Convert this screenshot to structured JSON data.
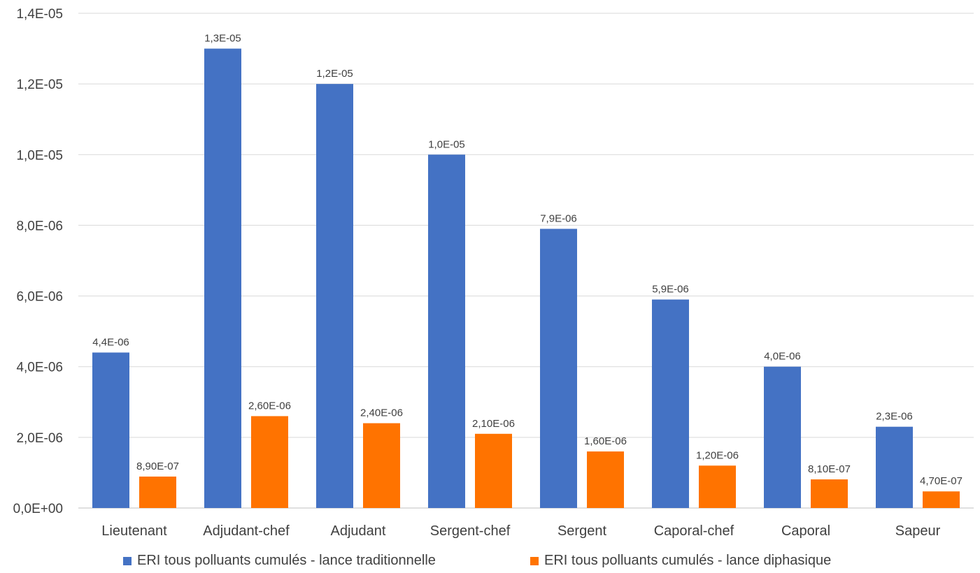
{
  "chart_data": {
    "type": "bar",
    "title": "",
    "xlabel": "",
    "ylabel": "",
    "ylim": [
      0,
      1.4e-05
    ],
    "y_ticks": [
      0,
      2e-06,
      4e-06,
      6e-06,
      8e-06,
      1e-05,
      1.2e-05,
      1.4e-05
    ],
    "y_tick_labels": [
      "0,0E+00",
      "2,0E-06",
      "4,0E-06",
      "6,0E-06",
      "8,0E-06",
      "1,0E-05",
      "1,2E-05",
      "1,4E-05"
    ],
    "grid": true,
    "legend_position": "bottom",
    "categories": [
      "Lieutenant",
      "Adjudant-chef",
      "Adjudant",
      "Sergent-chef",
      "Sergent",
      "Caporal-chef",
      "Caporal",
      "Sapeur"
    ],
    "series": [
      {
        "name": "ERI tous polluants cumulés - lance traditionnelle",
        "color": "#4472C4",
        "values": [
          4.4e-06,
          1.3e-05,
          1.2e-05,
          1e-05,
          7.9e-06,
          5.9e-06,
          4e-06,
          2.3e-06
        ],
        "labels": [
          "4,4E-06",
          "1,3E-05",
          "1,2E-05",
          "1,0E-05",
          "7,9E-06",
          "5,9E-06",
          "4,0E-06",
          "2,3E-06"
        ]
      },
      {
        "name": "ERI tous polluants cumulés - lance diphasique",
        "color": "#FF7300",
        "values": [
          8.9e-07,
          2.6e-06,
          2.4e-06,
          2.1e-06,
          1.6e-06,
          1.2e-06,
          8.1e-07,
          4.7e-07
        ],
        "labels": [
          "8,90E-07",
          "2,60E-06",
          "2,40E-06",
          "2,10E-06",
          "1,60E-06",
          "1,20E-06",
          "8,10E-07",
          "4,70E-07"
        ]
      }
    ]
  }
}
